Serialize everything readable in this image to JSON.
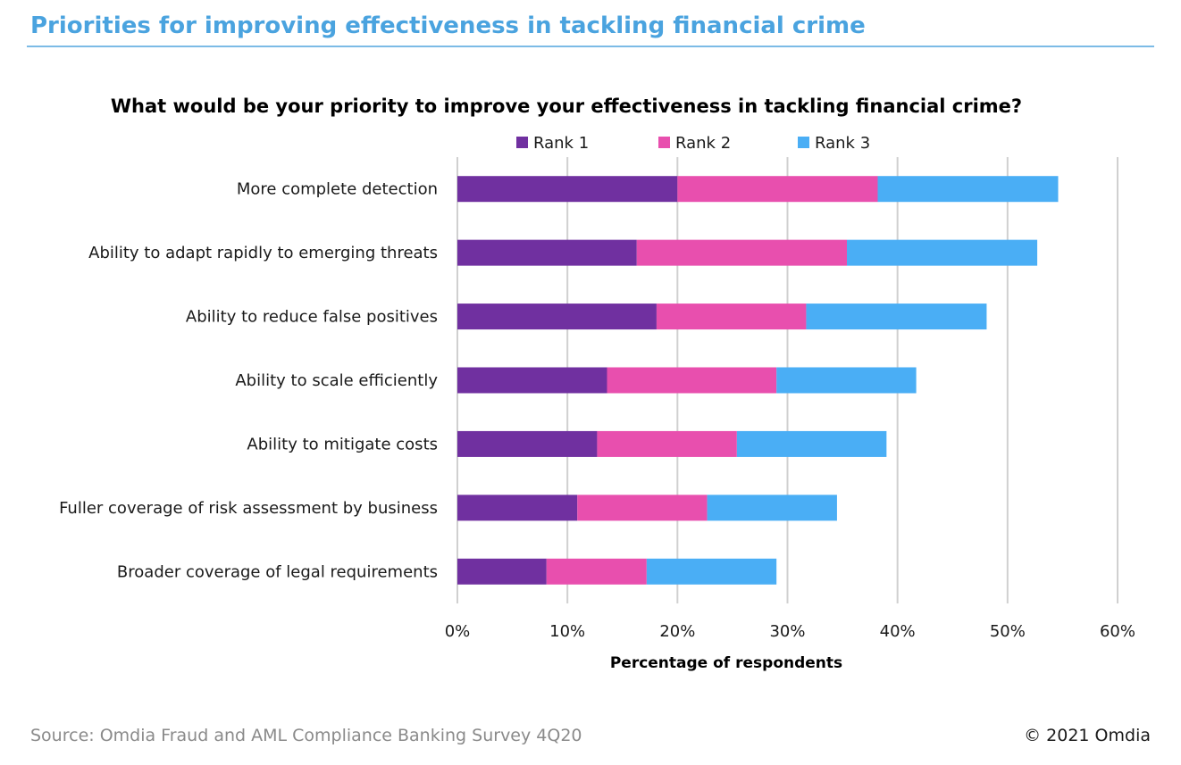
{
  "header": {
    "title": "Priorities for improving effectiveness in tackling financial crime"
  },
  "footer": {
    "source": "Source: Omdia Fraud and AML Compliance Banking Survey 4Q20",
    "copyright": "© 2021 Omdia"
  },
  "colors": {
    "header": "#4aa3df",
    "rank1": "#7030a0",
    "rank2": "#e84fae",
    "rank3": "#4aaef5",
    "grid": "#d0d0d0"
  },
  "chart_data": {
    "type": "bar",
    "orientation": "horizontal",
    "stacked": true,
    "title": "What would be your priority to improve your effectiveness in tackling financial crime?",
    "xlabel": "Percentage of respondents",
    "ylabel": "",
    "xlim": [
      0,
      60
    ],
    "x_ticks": [
      "0%",
      "10%",
      "20%",
      "30%",
      "40%",
      "50%",
      "60%"
    ],
    "grid": "vertical",
    "legend_position": "top",
    "categories": [
      "More complete detection",
      "Ability to adapt rapidly to emerging threats",
      "Ability to reduce false positives",
      "Ability to scale efficiently",
      "Ability to mitigate costs",
      "Fuller coverage of risk assessment by business",
      "Broader coverage of legal requirements"
    ],
    "series": [
      {
        "name": "Rank 1",
        "values": [
          20,
          16.3,
          18.1,
          13.6,
          12.7,
          10.9,
          8.1
        ]
      },
      {
        "name": "Rank 2",
        "values": [
          18.2,
          19.1,
          13.6,
          15.4,
          12.7,
          11.8,
          9.1
        ]
      },
      {
        "name": "Rank 3",
        "values": [
          16.4,
          17.3,
          16.4,
          12.7,
          13.6,
          11.8,
          11.8
        ]
      }
    ]
  }
}
